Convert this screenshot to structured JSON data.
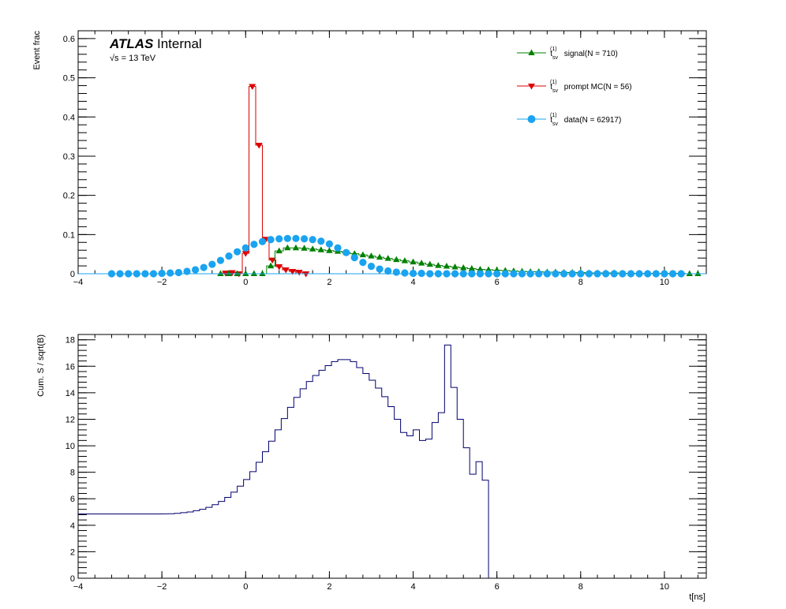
{
  "header": {
    "brand": "ATLAS",
    "status": "Internal",
    "energy_label": "√s = 13 TeV"
  },
  "colors": {
    "signal": "#008000",
    "prompt": "#dd0000",
    "data": "#1aa3f0",
    "significance": "#00006e"
  },
  "chart_data": [
    {
      "type": "line",
      "ylabel": "Event frac",
      "xlim": [
        -4,
        11
      ],
      "ylim": [
        0,
        0.62
      ],
      "x_ticks": [
        "−4",
        "−2",
        "0",
        "2",
        "4",
        "6",
        "8",
        "10"
      ],
      "x_tick_values": [
        -4,
        -2,
        0,
        2,
        4,
        6,
        8,
        10
      ],
      "y_ticks": [
        "0",
        "0.1",
        "0.2",
        "0.3",
        "0.4",
        "0.5",
        "0.6"
      ],
      "y_tick_values": [
        0,
        0.1,
        0.2,
        0.3,
        0.4,
        0.5,
        0.6
      ],
      "legend_position": "top-right",
      "series": [
        {
          "name": "t_sv^(1) signal(N = 710)",
          "legend": {
            "main": "t",
            "sub": "sv",
            "sup": "(1)",
            "rest": " signal(N = 710)"
          },
          "color_key": "signal",
          "marker": "triangle-up",
          "bin_width": 0.2,
          "x_start": -0.7,
          "values": [
            0.0,
            0.0,
            0.0,
            0.0,
            0.0,
            0.0,
            0.02,
            0.058,
            0.066,
            0.066,
            0.065,
            0.063,
            0.061,
            0.059,
            0.057,
            0.054,
            0.051,
            0.048,
            0.045,
            0.042,
            0.039,
            0.036,
            0.033,
            0.03,
            0.027,
            0.024,
            0.021,
            0.019,
            0.017,
            0.015,
            0.013,
            0.011,
            0.01,
            0.009,
            0.008,
            0.007,
            0.006,
            0.005,
            0.005,
            0.004,
            0.004,
            0.003,
            0.003,
            0.003,
            0.002,
            0.002,
            0.002,
            0.002,
            0.001,
            0.001,
            0.001,
            0.001,
            0.001,
            0.001,
            0.001,
            0.001,
            0.0,
            0.0
          ]
        },
        {
          "name": "t_sv^(1) prompt MC(N = 56)",
          "legend": {
            "main": "t",
            "sub": "sv",
            "sup": "(1)",
            "rest": " prompt MC(N = 56)"
          },
          "color_key": "prompt",
          "marker": "triangle-down",
          "bin_width": 0.16,
          "x_start": -0.56,
          "values": [
            0.002,
            0.003,
            0.0,
            0.052,
            0.478,
            0.328,
            0.088,
            0.035,
            0.018,
            0.01,
            0.006,
            0.004,
            0.0
          ]
        },
        {
          "name": "t_sv^(1) data(N = 62917)",
          "legend": {
            "main": "t",
            "sub": "sv",
            "sup": "(1)",
            "rest": " data(N = 62917)"
          },
          "color_key": "data",
          "marker": "circle",
          "bin_width": 0.2,
          "x_start": -3.3,
          "values": [
            0.0,
            0.0,
            0.0,
            0.0,
            0.0,
            0.0,
            0.001,
            0.002,
            0.003,
            0.006,
            0.01,
            0.016,
            0.024,
            0.034,
            0.045,
            0.056,
            0.066,
            0.075,
            0.082,
            0.087,
            0.089,
            0.09,
            0.09,
            0.089,
            0.087,
            0.083,
            0.076,
            0.066,
            0.054,
            0.041,
            0.029,
            0.019,
            0.012,
            0.007,
            0.004,
            0.002,
            0.001,
            0.001,
            0.0,
            0.0,
            0.0,
            0.0,
            0.0,
            0.0,
            0.0,
            0.0,
            0.0,
            0.0,
            0.0,
            0.0,
            0.0,
            0.0,
            0.0,
            0.0,
            0.0,
            0.0,
            0.0,
            0.0,
            0.0,
            0.0,
            0.0,
            0.0,
            0.0,
            0.0,
            0.0,
            0.0,
            0.0,
            0.0,
            0.0
          ]
        }
      ]
    },
    {
      "type": "line",
      "xlabel": "t[ns]",
      "ylabel": "Cum. S / sqrt(B)",
      "xlim": [
        -4,
        11
      ],
      "ylim": [
        0,
        18.4
      ],
      "x_ticks": [
        "−4",
        "−2",
        "0",
        "2",
        "4",
        "6",
        "8",
        "10"
      ],
      "x_tick_values": [
        -4,
        -2,
        0,
        2,
        4,
        6,
        8,
        10
      ],
      "y_ticks": [
        "0",
        "2",
        "4",
        "6",
        "8",
        "10",
        "12",
        "14",
        "16",
        "18"
      ],
      "y_tick_values": [
        0,
        2,
        4,
        6,
        8,
        10,
        12,
        14,
        16,
        18
      ],
      "series": [
        {
          "name": "Cum. S / sqrt(B)",
          "color_key": "significance",
          "bin_edges_start": -2.0,
          "bin_width": 0.15,
          "pre_value": 4.85,
          "values": [
            4.86,
            4.87,
            4.9,
            4.95,
            5.0,
            5.1,
            5.2,
            5.35,
            5.55,
            5.8,
            6.1,
            6.5,
            6.95,
            7.45,
            8.05,
            8.75,
            9.55,
            10.35,
            11.2,
            12.05,
            12.9,
            13.65,
            14.3,
            14.85,
            15.3,
            15.7,
            16.05,
            16.35,
            16.5,
            16.5,
            16.35,
            15.9,
            15.45,
            14.95,
            14.35,
            13.7,
            12.95,
            12.0,
            11.0,
            10.75,
            11.2,
            10.4,
            10.5,
            11.75,
            12.5,
            17.6,
            14.4,
            12.0,
            9.85,
            7.85,
            8.8,
            7.4
          ]
        }
      ]
    }
  ]
}
